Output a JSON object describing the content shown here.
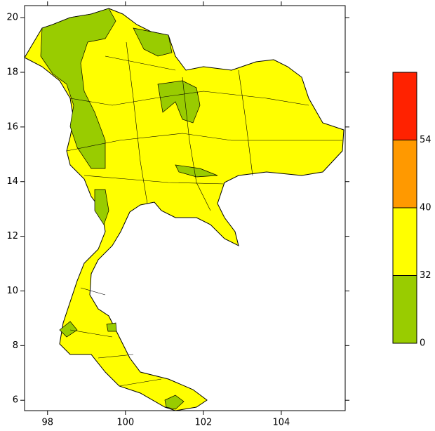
{
  "map": {
    "xlim": [
      97.41,
      105.64
    ],
    "ylim": [
      5.62,
      20.44
    ],
    "xticks": [
      98,
      100,
      102,
      104
    ],
    "yticks": [
      6,
      8,
      10,
      12,
      14,
      16,
      18,
      20
    ]
  },
  "colorbar": {
    "colors": [
      "#99cc00",
      "#ffff00",
      "#ff9900",
      "#ff2200"
    ],
    "ticks": [
      0,
      32,
      40,
      54
    ]
  }
}
